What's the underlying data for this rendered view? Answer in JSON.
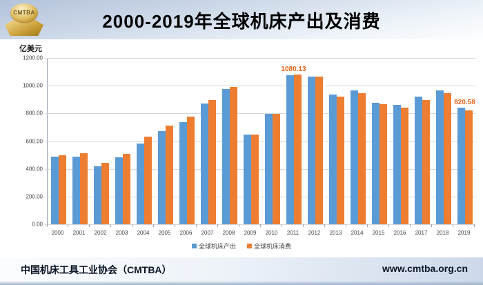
{
  "header": {
    "title": "2000-2019年全球机床产出及消费",
    "logo_text": "CMTBA"
  },
  "chart_data": {
    "type": "bar",
    "title": "2000-2019年全球机床产出及消费",
    "xlabel": "",
    "ylabel": "亿美元",
    "ylim": [
      0,
      1200
    ],
    "ytick_step": 200,
    "ytick_labels": [
      "0.00",
      "200.00",
      "400.00",
      "600.00",
      "800.00",
      "1000.00",
      "1200.00"
    ],
    "grid": "horizontal",
    "legend_position": "bottom-center",
    "categories": [
      "2000",
      "2001",
      "2002",
      "2003",
      "2004",
      "2005",
      "2006",
      "2007",
      "2008",
      "2009",
      "2010",
      "2011",
      "2012",
      "2013",
      "2014",
      "2015",
      "2016",
      "2017",
      "2018",
      "2019"
    ],
    "series": [
      {
        "name": "全球机床产出",
        "color": "#5B9BD5",
        "values": [
          490,
          487,
          420,
          484,
          583,
          673,
          736,
          871,
          975,
          648,
          797,
          1078,
          1066,
          936,
          968,
          877,
          860,
          923,
          966,
          841
        ]
      },
      {
        "name": "全球机床消费",
        "color": "#ED7D31",
        "values": [
          497,
          515,
          444,
          508,
          630,
          714,
          775,
          898,
          992,
          645,
          796,
          1080.13,
          1068,
          920,
          945,
          867,
          840,
          898,
          946,
          820.58
        ]
      }
    ],
    "annotations": [
      {
        "category": "2011",
        "series": "全球机床消费",
        "text": "1080.13",
        "color": "#E4671C"
      },
      {
        "category": "2019",
        "series": "全球机床消费",
        "text": "820.58",
        "color": "#E4671C"
      }
    ]
  },
  "footer": {
    "left": "中国机床工具工业协会（CMTBA）",
    "right": "www.cmtba.org.cn"
  }
}
